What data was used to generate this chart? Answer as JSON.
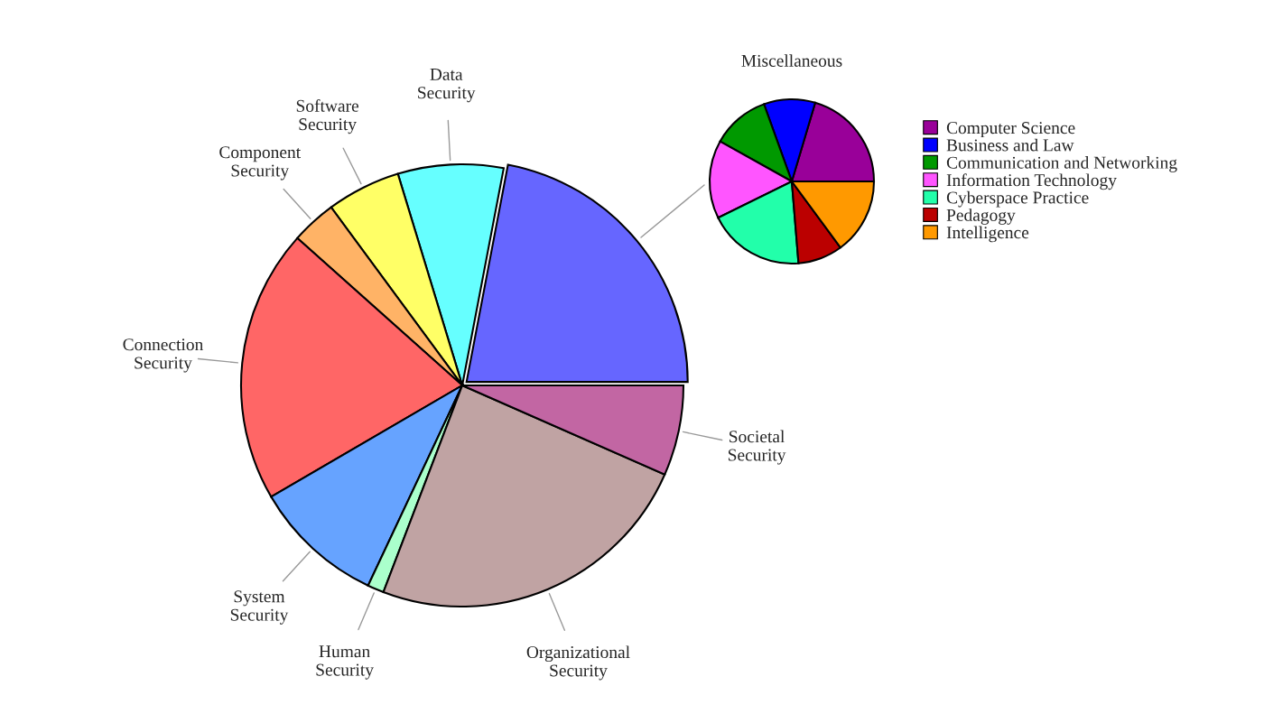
{
  "chart_data": [
    {
      "type": "pie",
      "categories": [
        null,
        "Data\nSecurity",
        "Software\nSecurity",
        "Component\nSecurity",
        "Connection\nSecurity",
        "System\nSecurity",
        "Human\nSecurity",
        "Organizational\nSecurity",
        "Societal\nSecurity"
      ],
      "values": [
        22,
        7.7,
        5.4,
        3.3,
        20,
        9.6,
        1.2,
        24.2,
        6.6
      ],
      "colors": [
        "#6666ff",
        "#66ffff",
        "#ffff66",
        "#ffb366",
        "#ff6666",
        "#66a3ff",
        "#aaffcc",
        "#c0a3a3",
        "#c266a3"
      ]
    },
    {
      "type": "pie",
      "title": "Miscellaneous",
      "legend": "right",
      "categories": [
        "Computer Science",
        "Business and Law",
        "Communication and Networking",
        "Information Technology",
        "Cyberspace Practice",
        "Pedagogy",
        "Intelligence"
      ],
      "values": [
        20.4,
        10.1,
        11.4,
        15.4,
        19,
        8.8,
        14.9
      ],
      "colors": [
        "#990099",
        "#0000ff",
        "#009900",
        "#ff55ff",
        "#22ffaa",
        "#bb0000",
        "#ff9900"
      ]
    }
  ]
}
